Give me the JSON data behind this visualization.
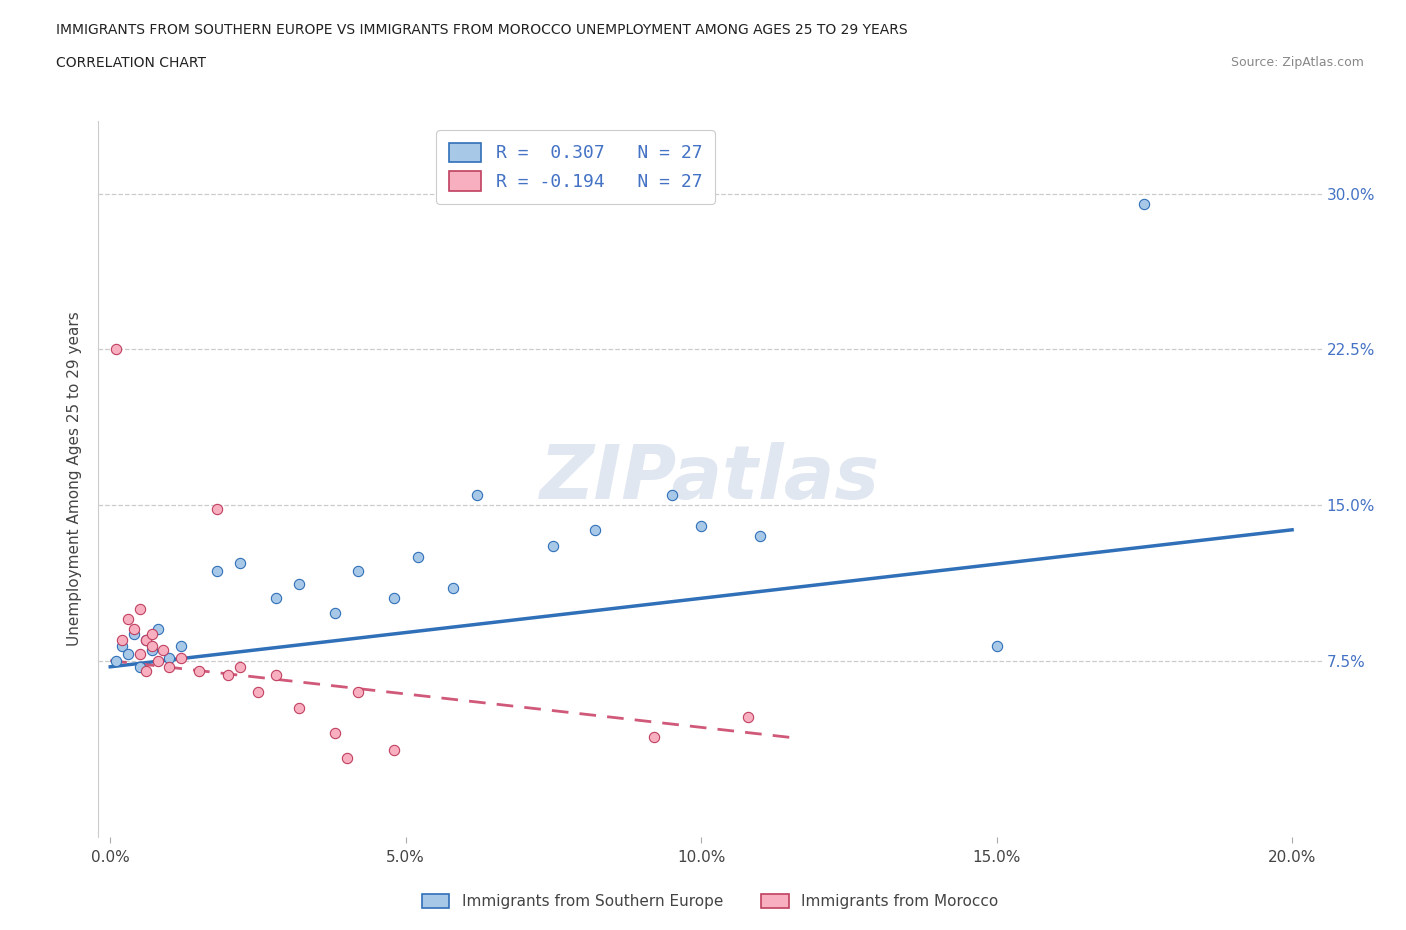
{
  "title_line1": "IMMIGRANTS FROM SOUTHERN EUROPE VS IMMIGRANTS FROM MOROCCO UNEMPLOYMENT AMONG AGES 25 TO 29 YEARS",
  "title_line2": "CORRELATION CHART",
  "source": "Source: ZipAtlas.com",
  "ylabel": "Unemployment Among Ages 25 to 29 years",
  "xlim": [
    -0.002,
    0.205
  ],
  "ylim": [
    -0.01,
    0.335
  ],
  "xticks": [
    0.0,
    0.05,
    0.1,
    0.15,
    0.2
  ],
  "xtick_labels": [
    "0.0%",
    "5.0%",
    "10.0%",
    "15.0%",
    "20.0%"
  ],
  "ytick_labels": [
    "7.5%",
    "15.0%",
    "22.5%",
    "30.0%"
  ],
  "ytick_vals": [
    0.075,
    0.15,
    0.225,
    0.3
  ],
  "r_blue": 0.307,
  "r_pink": -0.194,
  "n_blue": 27,
  "n_pink": 27,
  "blue_color": "#a8c8e8",
  "pink_color": "#f8b0c0",
  "trend_blue": "#3070b8",
  "trend_pink": "#d05878",
  "legend_label_blue": "Immigrants from Southern Europe",
  "legend_label_pink": "Immigrants from Morocco",
  "watermark": "ZIPatlas",
  "blue_x": [
    0.001,
    0.002,
    0.003,
    0.004,
    0.005,
    0.006,
    0.007,
    0.008,
    0.01,
    0.012,
    0.018,
    0.022,
    0.028,
    0.032,
    0.038,
    0.042,
    0.048,
    0.052,
    0.058,
    0.062,
    0.075,
    0.082,
    0.095,
    0.1,
    0.11,
    0.15,
    0.175
  ],
  "blue_y": [
    0.075,
    0.082,
    0.078,
    0.088,
    0.072,
    0.085,
    0.08,
    0.09,
    0.076,
    0.082,
    0.118,
    0.122,
    0.105,
    0.112,
    0.098,
    0.118,
    0.105,
    0.125,
    0.11,
    0.155,
    0.13,
    0.138,
    0.155,
    0.14,
    0.135,
    0.082,
    0.295
  ],
  "pink_x": [
    0.001,
    0.002,
    0.003,
    0.004,
    0.005,
    0.005,
    0.006,
    0.006,
    0.007,
    0.007,
    0.008,
    0.009,
    0.01,
    0.012,
    0.015,
    0.018,
    0.02,
    0.022,
    0.025,
    0.028,
    0.032,
    0.038,
    0.04,
    0.042,
    0.048,
    0.092,
    0.108
  ],
  "pink_y": [
    0.225,
    0.085,
    0.095,
    0.09,
    0.1,
    0.078,
    0.085,
    0.07,
    0.082,
    0.088,
    0.075,
    0.08,
    0.072,
    0.076,
    0.07,
    0.148,
    0.068,
    0.072,
    0.06,
    0.068,
    0.052,
    0.04,
    0.028,
    0.06,
    0.032,
    0.038,
    0.048
  ],
  "trend_blue_x0": 0.0,
  "trend_blue_y0": 0.072,
  "trend_blue_x1": 0.2,
  "trend_blue_y1": 0.138,
  "trend_pink_x0": 0.0,
  "trend_pink_y0": 0.075,
  "trend_pink_x1": 0.115,
  "trend_pink_y1": 0.038
}
